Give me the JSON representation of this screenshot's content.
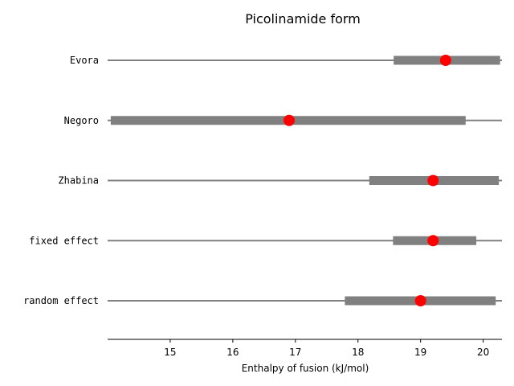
{
  "chart_data": {
    "type": "forest",
    "title": "Picolinamide form",
    "xlabel": "Enthalpy of fusion (kJ/mol)",
    "xlim": [
      14.0,
      20.3
    ],
    "xticks": [
      15,
      16,
      17,
      18,
      19,
      20
    ],
    "tick_labels": [
      "15",
      "16",
      "17",
      "18",
      "19",
      "20"
    ],
    "rows": [
      {
        "label": "Evora",
        "estimate": 19.4,
        "ci_low": 18.57,
        "ci_high": 20.27
      },
      {
        "label": "Negoro",
        "estimate": 16.9,
        "ci_low": 14.05,
        "ci_high": 19.72
      },
      {
        "label": "Zhabina",
        "estimate": 19.2,
        "ci_low": 18.18,
        "ci_high": 20.25
      },
      {
        "label": "fixed effect",
        "estimate": 19.2,
        "ci_low": 18.56,
        "ci_high": 19.89
      },
      {
        "label": "random effect",
        "estimate": 19.0,
        "ci_low": 17.79,
        "ci_high": 20.2
      }
    ],
    "colors": {
      "estimate": "#ff0000",
      "interval": "#808080",
      "line": "#808080",
      "axis": "#000000"
    },
    "grid": false
  }
}
